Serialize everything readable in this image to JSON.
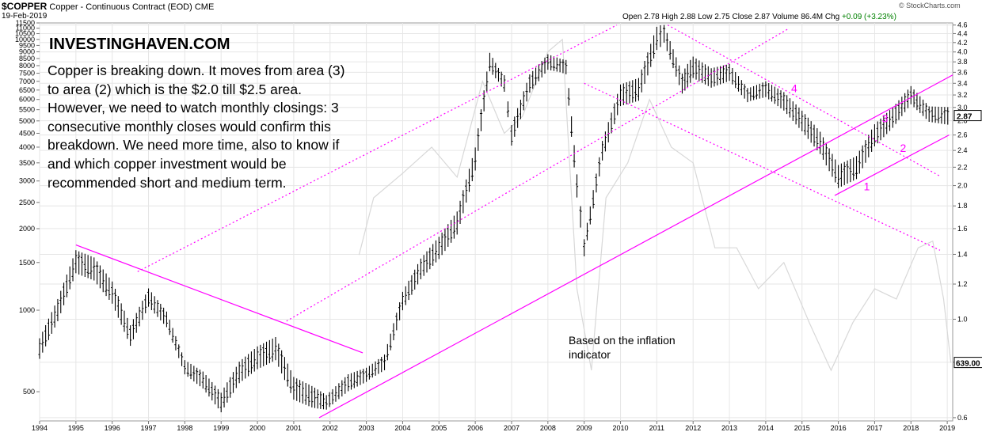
{
  "header": {
    "symbol": "$COPPER",
    "name": "Copper - Continuous Contract (EOD)",
    "exchange": "CME",
    "date": "19-Feb-2019",
    "copyright": "© StockCharts.com"
  },
  "quote": {
    "open_label": "Open",
    "open": "2.78",
    "high_label": "High",
    "high": "2.88",
    "low_label": "Low",
    "low": "2.75",
    "close_label": "Close",
    "close": "2.87",
    "volume_label": "Volume",
    "volume": "86.4M",
    "chg_label": "Chg",
    "chg": "+0.09 (+3.23%)"
  },
  "annotations": {
    "brand": "INVESTINGHAVEN.COM",
    "comment_lines": [
      "Copper is breaking down. It moves from area (3)",
      "to area (2) which is the $2.0 till $2.5 area.",
      "However, we need to watch monthly closings: 3",
      "consecutive monthly closes would confirm this",
      "breakdown. We need more time, also to know if",
      "and which copper investment would be",
      "recommended short and medium term."
    ],
    "note_lines": [
      "Based on the inflation",
      "indicator"
    ],
    "area_labels": [
      "1",
      "2",
      "3",
      "4"
    ]
  },
  "colors": {
    "price_bars": "#000000",
    "trendlines": "#ff00ff",
    "overlay": "#d8d8d8",
    "grid": "#e6e6e6",
    "last_price_box": "#ffffff"
  },
  "chart_data": {
    "type": "line",
    "scale": "log",
    "x_range": [
      1994,
      2019.15
    ],
    "x_ticks": [
      "1994",
      "1995",
      "1996",
      "1997",
      "1998",
      "1999",
      "2000",
      "2001",
      "2002",
      "2003",
      "2004",
      "2005",
      "2006",
      "2007",
      "2008",
      "2009",
      "2010",
      "2011",
      "2012",
      "2013",
      "2014",
      "2015",
      "2016",
      "2017",
      "2018",
      "2019"
    ],
    "left_axis": {
      "range": [
        390,
        11500
      ],
      "ticks": [
        11500,
        11000,
        10500,
        10000,
        9500,
        9000,
        8500,
        8000,
        7500,
        7000,
        6500,
        6000,
        5500,
        5000,
        4500,
        4000,
        3500,
        3000,
        2500,
        2000,
        1500,
        1000,
        500
      ]
    },
    "right_axis": {
      "range": [
        0.59,
        4.65
      ],
      "ticks": [
        4.6,
        4.4,
        4.2,
        4.0,
        3.8,
        3.6,
        3.4,
        3.2,
        3.0,
        2.8,
        2.6,
        2.4,
        2.2,
        2.0,
        1.8,
        1.6,
        1.4,
        1.2,
        1.0,
        0.8,
        0.6
      ],
      "last_price_label": "2.87",
      "overlay_last_label": "639.00"
    },
    "series": [
      {
        "type": "ohlc",
        "axis": "right",
        "x": [
          1994.0,
          1994.5,
          1995.0,
          1995.5,
          1996.0,
          1996.5,
          1997.0,
          1997.5,
          1998.0,
          1998.5,
          1999.0,
          1999.5,
          2000.0,
          2000.5,
          2001.0,
          2001.5,
          2001.9,
          2002.5,
          2003.0,
          2003.5,
          2004.0,
          2004.5,
          2005.0,
          2005.5,
          2006.0,
          2006.4,
          2006.8,
          2007.0,
          2007.5,
          2008.0,
          2008.5,
          2008.8,
          2009.0,
          2009.5,
          2010.0,
          2010.5,
          2011.0,
          2011.2,
          2011.7,
          2012.0,
          2012.5,
          2013.0,
          2013.5,
          2014.0,
          2014.5,
          2015.0,
          2015.5,
          2016.0,
          2016.5,
          2017.0,
          2017.5,
          2018.0,
          2018.5,
          2019.1
        ],
        "values": [
          0.86,
          1.05,
          1.35,
          1.3,
          1.15,
          0.92,
          1.12,
          1.0,
          0.78,
          0.73,
          0.65,
          0.76,
          0.82,
          0.86,
          0.7,
          0.67,
          0.65,
          0.72,
          0.75,
          0.8,
          1.1,
          1.3,
          1.45,
          1.65,
          2.3,
          3.8,
          3.4,
          2.6,
          3.4,
          3.8,
          3.7,
          2.0,
          1.45,
          2.4,
          3.2,
          3.3,
          4.3,
          4.4,
          3.4,
          3.7,
          3.5,
          3.6,
          3.2,
          3.3,
          3.1,
          2.8,
          2.5,
          2.1,
          2.2,
          2.6,
          2.85,
          3.2,
          2.9,
          2.87
        ]
      },
      {
        "name": "",
        "type": "line",
        "axis": "left",
        "x": [
          2002.8,
          2003.2,
          2004.0,
          2004.8,
          2005.5,
          2006.2,
          2006.8,
          2007.3,
          2008.0,
          2008.4,
          2008.8,
          2009.2,
          2009.6,
          2010.2,
          2010.8,
          2011.4,
          2012.0,
          2012.6,
          2013.2,
          2013.8,
          2014.5,
          2015.2,
          2015.8,
          2016.4,
          2017.0,
          2017.6,
          2018.2,
          2018.6,
          2018.9,
          2019.1
        ],
        "values": [
          1600,
          2600,
          3200,
          4000,
          3100,
          7000,
          4500,
          5200,
          9000,
          10000,
          1200,
          600,
          2600,
          3500,
          6000,
          4000,
          3500,
          1700,
          1700,
          1200,
          1500,
          900,
          600,
          900,
          1200,
          1100,
          1700,
          1800,
          1100,
          639
        ]
      }
    ],
    "trendlines": [
      {
        "from": [
          1995.0,
          1.47
        ],
        "to": [
          2002.9,
          0.84
        ]
      },
      {
        "from": [
          1996.7,
          1.28
        ],
        "to": [
          2009.9,
          4.6
        ]
      },
      {
        "from": [
          2000.8,
          0.99
        ],
        "to": [
          2014.6,
          4.5
        ]
      },
      {
        "from": [
          2001.7,
          0.6
        ],
        "to": [
          2019.15,
          3.55
        ]
      },
      {
        "from": [
          2009.0,
          3.4
        ],
        "to": [
          2018.8,
          1.43
        ]
      },
      {
        "from": [
          2011.3,
          4.6
        ],
        "to": [
          2018.8,
          2.1
        ]
      },
      {
        "from": [
          2015.9,
          1.9
        ],
        "to": [
          2019.05,
          2.6
        ]
      }
    ]
  }
}
